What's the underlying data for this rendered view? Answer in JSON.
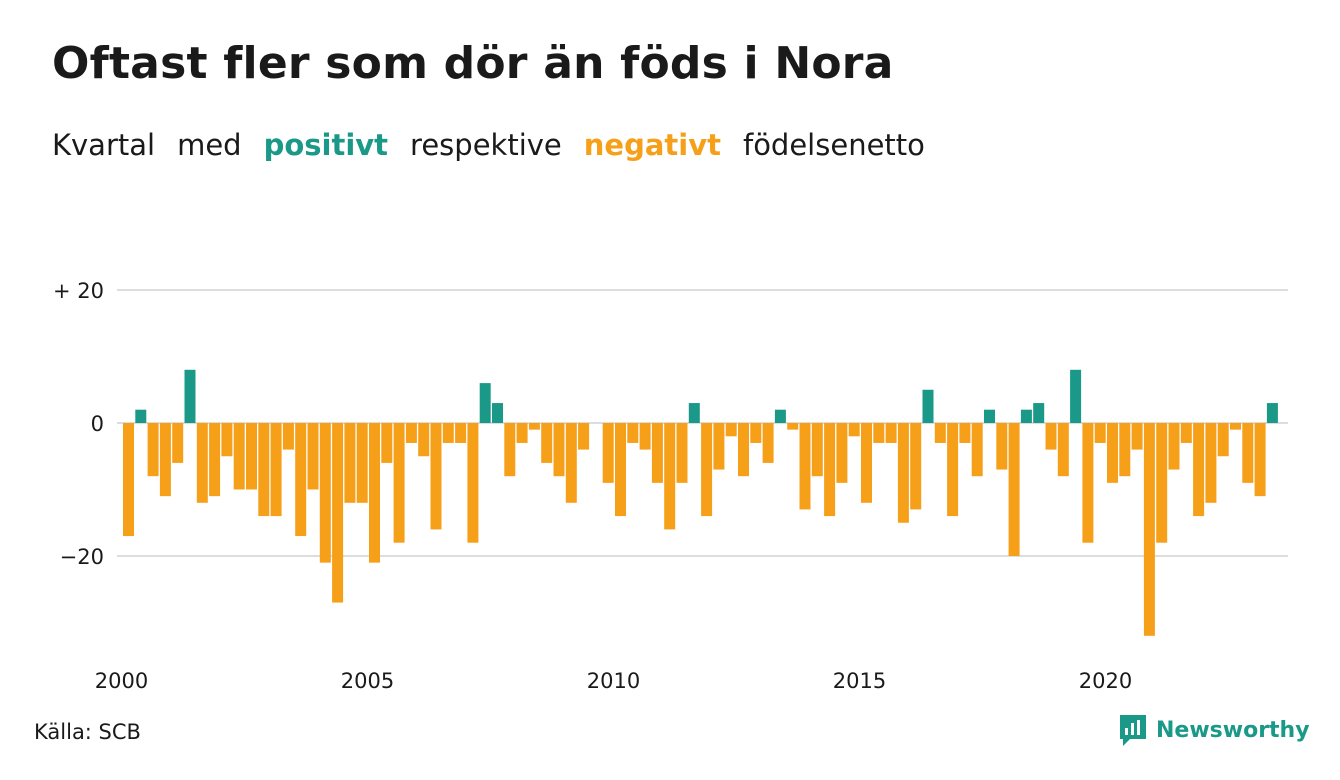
{
  "header": {
    "title": "Oftast fler som dör än föds i Nora",
    "subtitle": {
      "w1": "Kvartal",
      "w2": "med",
      "positive": "positivt",
      "w3": "respektive",
      "negative": "negativt",
      "w4": "födelsenetto"
    }
  },
  "colors": {
    "positive": "#1a9988",
    "negative": "#f6a01a",
    "grid": "#dddddd",
    "text": "#1a1a1a"
  },
  "footer": {
    "source": "Källa: SCB",
    "brand": "Newsworthy",
    "brand_icon": "newsworthy-logo-icon"
  },
  "chart_data": {
    "type": "bar",
    "title": "Oftast fler som dör än föds i Nora",
    "subtitle": "Kvartal med positivt respektive negativt födelsenetto",
    "xlabel": "",
    "ylabel": "",
    "x_start": 2000,
    "x_step": 0.25,
    "ylim": [
      -33,
      20
    ],
    "y_ticks": [
      20,
      0,
      -20
    ],
    "y_tick_labels": [
      "+ 20",
      "0",
      "−20"
    ],
    "x_ticks": [
      2000,
      2005,
      2010,
      2015,
      2020
    ],
    "x_tick_labels": [
      "2000",
      "2005",
      "2010",
      "2015",
      "2020"
    ],
    "grid": "horizontal",
    "values": [
      -17,
      2,
      -8,
      -11,
      -6,
      8,
      -12,
      -11,
      -5,
      -10,
      -10,
      -14,
      -14,
      -4,
      -17,
      -10,
      -21,
      -27,
      -12,
      -12,
      -21,
      -6,
      -18,
      -3,
      -5,
      -16,
      -3,
      -3,
      -18,
      6,
      3,
      -8,
      -3,
      -1,
      -6,
      -8,
      -12,
      -4,
      0,
      -9,
      -14,
      -3,
      -4,
      -9,
      -16,
      -9,
      3,
      -14,
      -7,
      -2,
      -8,
      -3,
      -6,
      2,
      -1,
      -13,
      -8,
      -14,
      -9,
      -2,
      -12,
      -3,
      -3,
      -15,
      -13,
      5,
      -3,
      -14,
      -3,
      -8,
      2,
      -7,
      -20,
      2,
      3,
      -4,
      -8,
      8,
      -18,
      -3,
      -9,
      -8,
      -4,
      -32,
      -18,
      -7,
      -3,
      -14,
      -12,
      -5,
      -1,
      -9,
      -11,
      3
    ]
  }
}
